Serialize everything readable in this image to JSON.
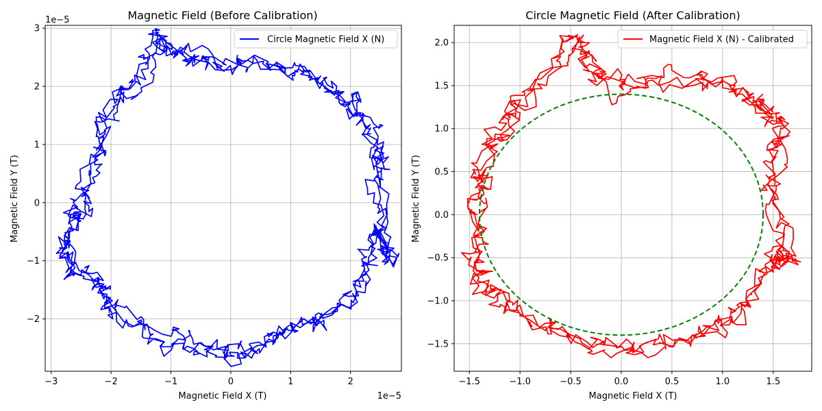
{
  "chart_data": [
    {
      "type": "line",
      "title": "Magnetic Field (Before Calibration)",
      "xlabel": "Magnetic Field X (T)",
      "ylabel": "Magnetic Field Y (T)",
      "x_offset_label": "1e−5",
      "y_offset_label": "1e−5",
      "scale": 1e-05,
      "xlim": [
        -3.1,
        2.85
      ],
      "ylim": [
        -2.9,
        3.05
      ],
      "xticks": [
        -3,
        -2,
        -1,
        0,
        1,
        2
      ],
      "xtick_labels": [
        "−3",
        "−2",
        "−1",
        "0",
        "1",
        "2"
      ],
      "yticks": [
        -2,
        -1,
        0,
        1,
        2,
        3
      ],
      "ytick_labels": [
        "−2",
        "−1",
        "0",
        "1",
        "2",
        "3"
      ],
      "grid": true,
      "legend_position": "top-right",
      "series": [
        {
          "name": "Circle Magnetic Field X (N)",
          "color": "#0000ff",
          "style": "solid",
          "center": [
            0.1,
            0.05
          ],
          "radius": 2.3,
          "noise": 0.32,
          "points": [
            [
              2.5,
              0.4
            ],
            [
              2.4,
              1.0
            ],
            [
              2.1,
              1.6
            ],
            [
              1.5,
              2.1
            ],
            [
              0.8,
              2.35
            ],
            [
              0.0,
              2.4
            ],
            [
              -0.8,
              2.5
            ],
            [
              -1.2,
              2.75
            ],
            [
              -1.6,
              2.1
            ],
            [
              -2.1,
              1.4
            ],
            [
              -2.3,
              0.7
            ],
            [
              -2.5,
              0.0
            ],
            [
              -2.7,
              -0.5
            ],
            [
              -2.75,
              -1.05
            ],
            [
              -2.3,
              -1.4
            ],
            [
              -1.9,
              -1.9
            ],
            [
              -1.2,
              -2.3
            ],
            [
              -0.4,
              -2.55
            ],
            [
              0.3,
              -2.6
            ],
            [
              1.0,
              -2.2
            ],
            [
              1.6,
              -1.9
            ],
            [
              2.2,
              -1.3
            ],
            [
              2.45,
              -0.6
            ],
            [
              2.55,
              -0.9
            ],
            [
              2.5,
              0.4
            ]
          ]
        }
      ]
    },
    {
      "type": "line",
      "title": "Circle Magnetic Field (After Calibration)",
      "xlabel": "Magnetic Field X (T)",
      "ylabel": "Magnetic Field Y (T)",
      "xlim": [
        -1.65,
        1.88
      ],
      "ylim": [
        -1.82,
        2.2
      ],
      "xticks": [
        -1.5,
        -1.0,
        -0.5,
        0.0,
        0.5,
        1.0,
        1.5
      ],
      "xtick_labels": [
        "−1.5",
        "−1.0",
        "−0.5",
        "0.0",
        "0.5",
        "1.0",
        "1.5"
      ],
      "yticks": [
        -1.5,
        -1.0,
        -0.5,
        0.0,
        0.5,
        1.0,
        1.5,
        2.0
      ],
      "ytick_labels": [
        "−1.5",
        "−1.0",
        "−0.5",
        "0.0",
        "0.5",
        "1.0",
        "1.5",
        "2.0"
      ],
      "grid": true,
      "legend_position": "top-right",
      "series": [
        {
          "name": "Magnetic Field X (N) - Calibrated",
          "color": "#ff0000",
          "style": "solid",
          "center": [
            0.1,
            0.0
          ],
          "radius": 1.38,
          "noise": 0.2,
          "points": [
            [
              1.45,
              0.3
            ],
            [
              1.6,
              0.9
            ],
            [
              1.5,
              1.2
            ],
            [
              1.1,
              1.45
            ],
            [
              0.6,
              1.55
            ],
            [
              0.0,
              1.5
            ],
            [
              -0.3,
              1.8
            ],
            [
              -0.5,
              2.0
            ],
            [
              -0.9,
              1.4
            ],
            [
              -1.2,
              1.0
            ],
            [
              -1.35,
              0.5
            ],
            [
              -1.45,
              0.0
            ],
            [
              -1.4,
              -0.6
            ],
            [
              -1.2,
              -1.0
            ],
            [
              -0.8,
              -1.3
            ],
            [
              -0.2,
              -1.5
            ],
            [
              0.4,
              -1.5
            ],
            [
              0.9,
              -1.3
            ],
            [
              1.3,
              -1.0
            ],
            [
              1.55,
              -0.5
            ],
            [
              1.7,
              -0.5
            ],
            [
              1.45,
              0.3
            ]
          ]
        },
        {
          "name": "",
          "color": "#008000",
          "style": "dashed",
          "center": [
            0.0,
            0.0
          ],
          "radius": 1.4
        }
      ]
    }
  ]
}
